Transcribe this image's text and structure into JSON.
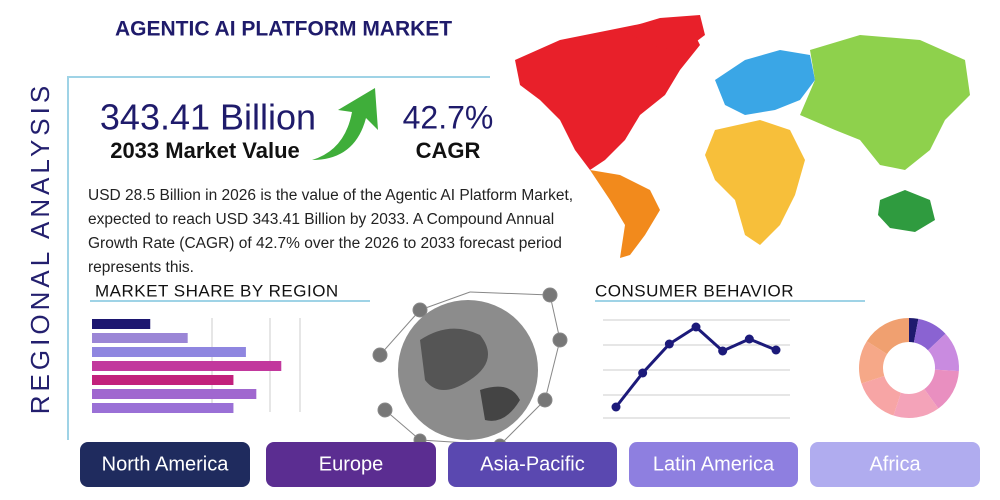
{
  "header": {
    "title": "AGENTIC AI PLATFORM MARKET",
    "side_label": "REGIONAL ANALYSIS"
  },
  "stats": [
    {
      "value": "343.41 Billion",
      "label": "2033 Market Value"
    },
    {
      "value": "42.7%",
      "label": "CAGR"
    }
  ],
  "description": "USD 28.5 Billion in 2026 is the value of the Agentic AI Platform Market, expected to reach USD 343.41 Billion by 2033. A Compound Annual Growth Rate (CAGR) of 42.7% over the 2026 to 2033 forecast period represents this.",
  "chart_data": [
    {
      "type": "hbar",
      "title": "MARKET SHARE BY REGION",
      "categories": [
        null,
        null,
        null,
        null,
        null,
        null,
        null
      ],
      "values": [
        28,
        46,
        74,
        91,
        68,
        79,
        68
      ],
      "colors": [
        "#1c1670",
        "#9b86d6",
        "#8f86e0",
        "#c2389d",
        "#c2207c",
        "#a067cf",
        "#9a70d6"
      ],
      "xlim": [
        0,
        100
      ]
    },
    {
      "type": "line",
      "title": "CONSUMER BEHAVIOR",
      "categories": [
        null,
        null,
        null,
        null,
        null,
        null,
        null
      ],
      "values": [
        13,
        47,
        76,
        93,
        69,
        81,
        70
      ],
      "color": "#1c1a7a",
      "ylim": [
        0,
        100
      ]
    },
    {
      "type": "donut",
      "categories": [
        null,
        null,
        null,
        null,
        null,
        null,
        null,
        null
      ],
      "values": [
        3,
        10,
        13,
        14,
        15,
        15,
        14,
        16
      ],
      "colors": [
        "#1e1a6e",
        "#8a63d2",
        "#c98be0",
        "#e98fc0",
        "#f4a3b9",
        "#f7a5a5",
        "#f6a888",
        "#f0a070"
      ]
    }
  ],
  "regions": [
    {
      "name": "North America",
      "color": "#1f2b5e"
    },
    {
      "name": "Europe",
      "color": "#5b2d91"
    },
    {
      "name": "Asia-Pacific",
      "color": "#5a48b0"
    },
    {
      "name": "Latin America",
      "color": "#8e7fe0"
    },
    {
      "name": "Africa",
      "color": "#b0acef"
    }
  ]
}
